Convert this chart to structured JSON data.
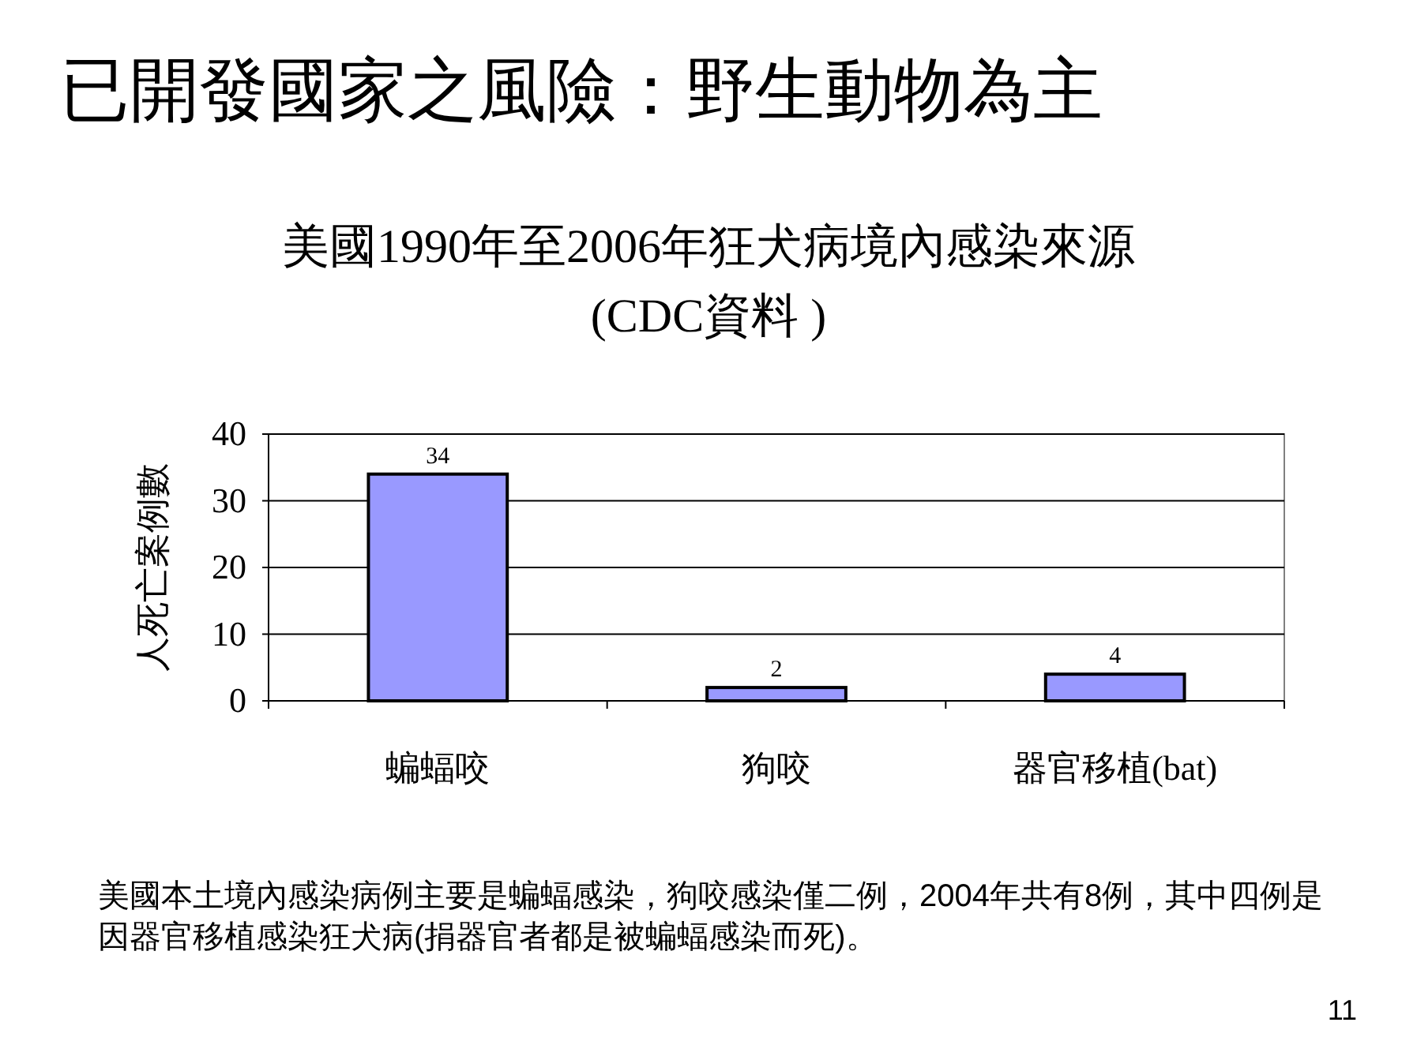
{
  "chart_data": {
    "type": "bar",
    "title": "已開發國家之風險：野生動物為主",
    "subtitle": "美國1990年至2006年狂犬病境內感染來源",
    "ylabel": "人死亡案例數",
    "categories": [
      "蝙蝠咬",
      "狗咬",
      "器官移植(bat)"
    ],
    "values": [
      34,
      2,
      4
    ],
    "color": "#9999ff",
    "ylim": [
      0,
      40
    ],
    "yticks": [
      0,
      10,
      20,
      30,
      40
    ],
    "grid": "y",
    "data_labels": true,
    "annotations": [
      "(CDC資料 )",
      "美國本土境內感染病例主要是蝙蝠感染，狗咬感染僅二例，2004年共有8例，其中四例是因器官移植感染狂犬病(捐器官者都是被蝙蝠感染而死)。",
      "11"
    ]
  }
}
